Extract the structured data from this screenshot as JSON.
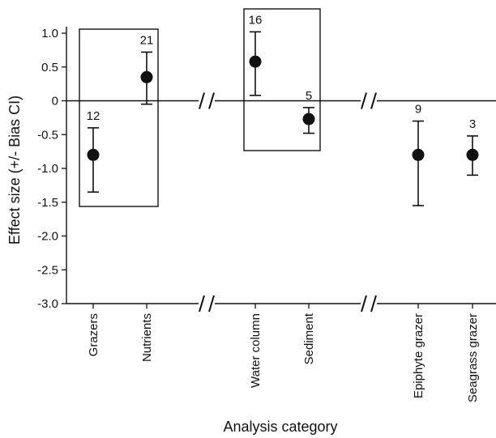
{
  "chart_data": {
    "type": "scatter",
    "title": "",
    "xlabel": "Analysis category",
    "ylabel": "Effect size (+/- Bias CI)",
    "ylim": [
      -3.0,
      1.0
    ],
    "yticks": [
      "1.0",
      "0.5",
      "0",
      "-0.5",
      "-1.0",
      "-1.5",
      "-2.0",
      "-2.5",
      "-3.0"
    ],
    "grid": false,
    "categories": [
      "Grazers",
      "Nutrients",
      "Water column",
      "Sediment",
      "Epiphyte grazer",
      "Seagrass grazer"
    ],
    "points": [
      {
        "category": "Grazers",
        "n": "12",
        "y": -0.8,
        "ci_low": -1.35,
        "ci_high": -0.4
      },
      {
        "category": "Nutrients",
        "n": "21",
        "y": 0.35,
        "ci_low": -0.05,
        "ci_high": 0.72
      },
      {
        "category": "Water column",
        "n": "16",
        "y": 0.58,
        "ci_low": 0.08,
        "ci_high": 1.02
      },
      {
        "category": "Sediment",
        "n": "5",
        "y": -0.27,
        "ci_low": -0.48,
        "ci_high": -0.1
      },
      {
        "category": "Epiphyte grazer",
        "n": "9",
        "y": -0.8,
        "ci_low": -1.55,
        "ci_high": -0.3
      },
      {
        "category": "Seagrass grazer",
        "n": "3",
        "y": -0.8,
        "ci_low": -1.1,
        "ci_high": -0.52
      }
    ],
    "groups": [
      {
        "categories": [
          "Grazers",
          "Nutrients"
        ],
        "boxed": true
      },
      {
        "categories": [
          "Water column",
          "Sediment"
        ],
        "boxed": true
      },
      {
        "categories": [
          "Epiphyte grazer",
          "Seagrass grazer"
        ],
        "boxed": false
      }
    ],
    "axis_break_symbol": "//"
  }
}
